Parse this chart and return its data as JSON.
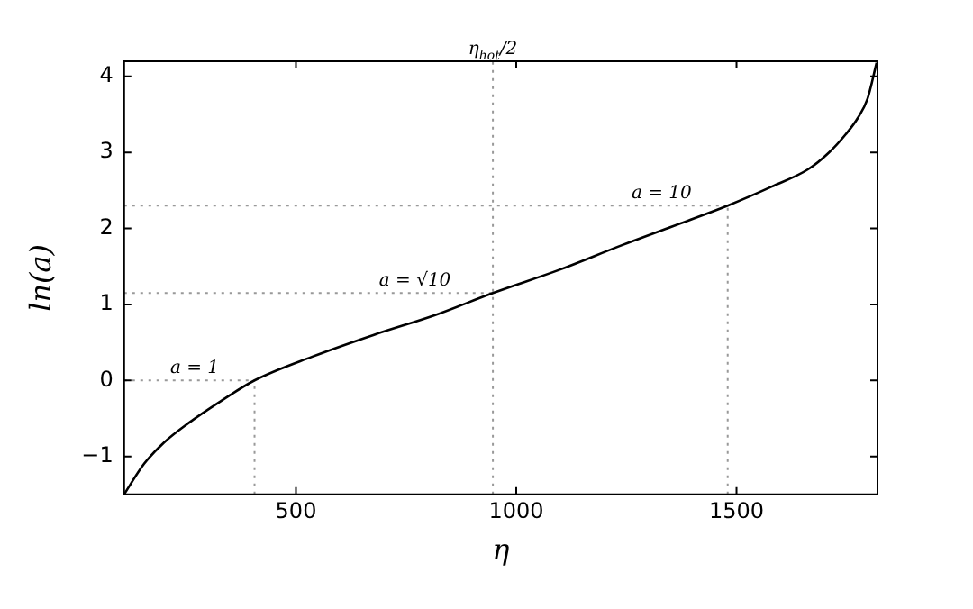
{
  "chart_data": {
    "type": "line",
    "xlabel": "η",
    "ylabel": "ln(a)",
    "series": [
      {
        "color": "#000000",
        "x": [
          110,
          155,
          200,
          254,
          330,
          406,
          536,
          677,
          816,
          947,
          1100,
          1240,
          1370,
          1480,
          1580,
          1663,
          1710,
          1748,
          1775,
          1797,
          1818
        ],
        "values": [
          -1.5,
          -1.1,
          -0.82,
          -0.57,
          -0.27,
          0,
          0.31,
          0.6,
          0.86,
          1.15,
          1.46,
          1.78,
          2.06,
          2.3,
          2.55,
          2.78,
          3.0,
          3.24,
          3.45,
          3.7,
          4.18
        ]
      }
    ],
    "xlim": [
      110,
      1820
    ],
    "xticks": [
      500,
      1000,
      1500
    ],
    "ylim": [
      -1.5,
      4.2
    ],
    "yticks": [
      -1,
      0,
      1,
      2,
      3,
      4
    ],
    "ref_lines": [
      {
        "axis": "y",
        "value": 0,
        "color": "#999999",
        "line_style": "dotted"
      },
      {
        "axis": "y",
        "value": 1.15,
        "color": "#999999",
        "line_style": "dotted"
      },
      {
        "axis": "y",
        "value": 2.3,
        "color": "#999999",
        "line_style": "dotted"
      },
      {
        "axis": "x",
        "value": 406,
        "color": "#999999",
        "line_style": "dotted"
      },
      {
        "axis": "x",
        "value": 947,
        "label": "η$_{hot}$/2",
        "color": "#999999",
        "line_style": "dotted"
      },
      {
        "axis": "x",
        "value": 1480,
        "color": "#999999",
        "line_style": "dotted"
      }
    ],
    "annotations": [
      {
        "text": "a = 1",
        "x": 270,
        "y": 0
      },
      {
        "text": "a = √10",
        "x": 770,
        "y": 1.15
      },
      {
        "text": "a = 10",
        "x": 1330,
        "y": 2.3
      }
    ],
    "grid": false,
    "legend": false,
    "marker": "none",
    "line_style": "solid"
  }
}
